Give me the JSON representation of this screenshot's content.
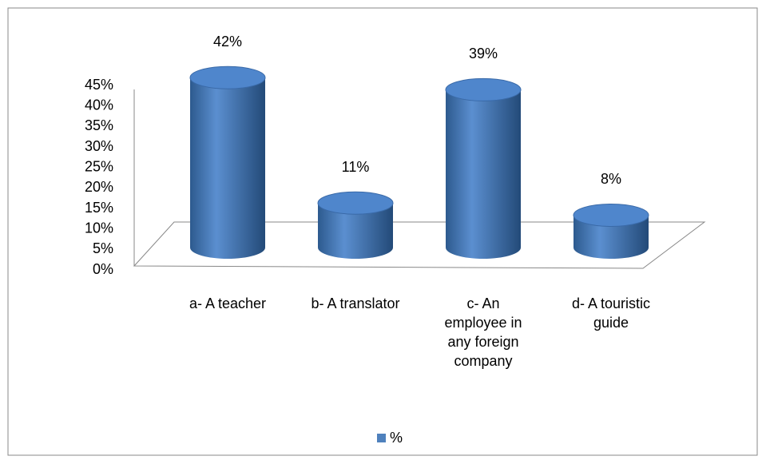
{
  "chart_data": {
    "type": "bar3d",
    "categories": [
      "a- A teacher",
      "b- A translator",
      "c- An employee in any foreign company",
      "d- A touristic guide"
    ],
    "series": [
      {
        "name": "%",
        "color": "#4f81bd",
        "values": [
          42,
          11,
          39,
          8
        ],
        "value_labels": [
          "42%",
          "11%",
          "39%",
          "8%"
        ]
      }
    ],
    "ylim": [
      0,
      45
    ],
    "yticks": [
      {
        "value": 0,
        "label": "0%"
      },
      {
        "value": 5,
        "label": "5%"
      },
      {
        "value": 10,
        "label": "10%"
      },
      {
        "value": 15,
        "label": "15%"
      },
      {
        "value": 20,
        "label": "20%"
      },
      {
        "value": 25,
        "label": "25%"
      },
      {
        "value": 30,
        "label": "30%"
      },
      {
        "value": 35,
        "label": "35%"
      },
      {
        "value": 40,
        "label": "40%"
      },
      {
        "value": 45,
        "label": "45%"
      }
    ],
    "legend": "bottom"
  }
}
